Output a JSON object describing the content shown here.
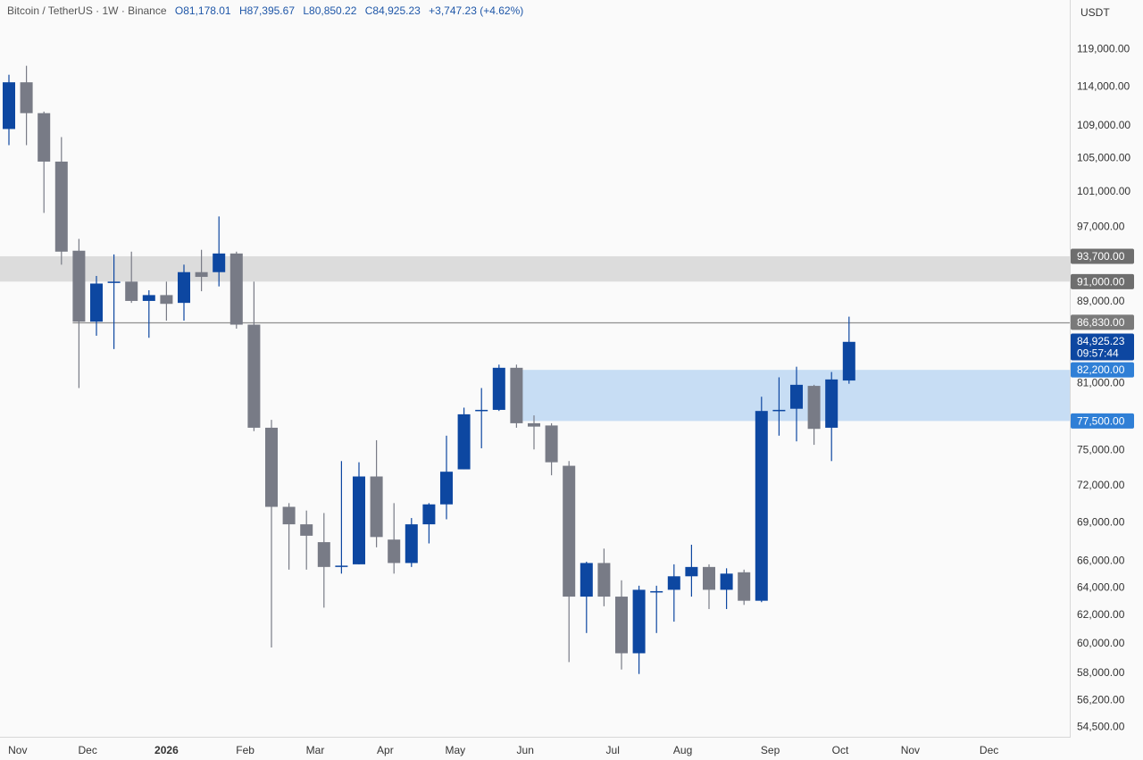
{
  "legend": {
    "symbol": "Bitcoin / TetherUS · 1W · Binance",
    "open": "O81,178.01",
    "high": "H87,395.67",
    "low": "L80,850.22",
    "close": "C84,925.23",
    "change": "+3,747.23 (+4.62%)"
  },
  "currency_label": "USDT",
  "colors": {
    "up": "#0d47a1",
    "down": "#787b86",
    "zone_supply": "#dcdcdc",
    "zone_demand": "#c7ddf4",
    "price_line": "#909090"
  },
  "chart_data": {
    "type": "candlestick",
    "title": "Bitcoin / TetherUS · 1W · Binance",
    "scale": "log",
    "ylim": [
      53500,
      124000
    ],
    "x_labels": [
      {
        "i": 0.5,
        "label": "Nov"
      },
      {
        "i": 4.5,
        "label": "Dec"
      },
      {
        "i": 9,
        "label": "2026",
        "bold": true
      },
      {
        "i": 13.5,
        "label": "Feb"
      },
      {
        "i": 17.5,
        "label": "Mar"
      },
      {
        "i": 21.5,
        "label": "Apr"
      },
      {
        "i": 25.5,
        "label": "May"
      },
      {
        "i": 29.5,
        "label": "Jun"
      },
      {
        "i": 34.5,
        "label": "Jul"
      },
      {
        "i": 38.5,
        "label": "Aug"
      },
      {
        "i": 43.5,
        "label": "Sep"
      },
      {
        "i": 47.5,
        "label": "Oct"
      },
      {
        "i": 51.5,
        "label": "Nov"
      },
      {
        "i": 56,
        "label": "Dec"
      }
    ],
    "y_ticks": [
      "119,000.00",
      "114,000.00",
      "109,000.00",
      "105,000.00",
      "101,000.00",
      "97,000.00",
      "89,000.00",
      "81,000.00",
      "75,000.00",
      "72,000.00",
      "69,000.00",
      "66,000.00",
      "64,000.00",
      "62,000.00",
      "60,000.00",
      "58,000.00",
      "56,200.00",
      "54,500.00"
    ],
    "zones": [
      {
        "name": "supply",
        "from": 91000,
        "to": 93700,
        "color": "#dcdcdc"
      },
      {
        "name": "demand",
        "from": 77500,
        "to": 82200,
        "color": "#c7ddf4"
      }
    ],
    "hline": 86830,
    "price_tags": [
      {
        "value": 93700,
        "text": "93,700.00",
        "bg": "#6e6e6e",
        "fg": "#ffffff"
      },
      {
        "value": 91000,
        "text": "91,000.00",
        "bg": "#6e6e6e",
        "fg": "#ffffff"
      },
      {
        "value": 86830,
        "text": "86,830.00",
        "bg": "#7a7a7a",
        "fg": "#ffffff"
      },
      {
        "value": 84925.23,
        "text": "84,925.23",
        "sub": "09:57:44",
        "bg": "#0d47a1",
        "fg": "#ffffff"
      },
      {
        "value": 82200,
        "text": "82,200.00",
        "bg": "#2f7fd6",
        "fg": "#ffffff"
      },
      {
        "value": 77500,
        "text": "77,500.00",
        "bg": "#2f7fd6",
        "fg": "#ffffff"
      }
    ],
    "candles": [
      {
        "o": 108500,
        "h": 115500,
        "l": 106500,
        "c": 114500
      },
      {
        "o": 114500,
        "h": 116700,
        "l": 106500,
        "c": 110500
      },
      {
        "o": 110500,
        "h": 110700,
        "l": 98500,
        "c": 104500
      },
      {
        "o": 104500,
        "h": 107500,
        "l": 92800,
        "c": 94200
      },
      {
        "o": 94300,
        "h": 95600,
        "l": 80500,
        "c": 86900
      },
      {
        "o": 86900,
        "h": 91600,
        "l": 85500,
        "c": 90800
      },
      {
        "o": 90900,
        "h": 93900,
        "l": 84200,
        "c": 91000
      },
      {
        "o": 91000,
        "h": 94200,
        "l": 88800,
        "c": 89000
      },
      {
        "o": 89000,
        "h": 90100,
        "l": 85300,
        "c": 89600
      },
      {
        "o": 89600,
        "h": 91000,
        "l": 87000,
        "c": 88700
      },
      {
        "o": 88800,
        "h": 92800,
        "l": 87000,
        "c": 92000
      },
      {
        "o": 92000,
        "h": 94400,
        "l": 90000,
        "c": 91500
      },
      {
        "o": 92000,
        "h": 98100,
        "l": 90500,
        "c": 94000
      },
      {
        "o": 94000,
        "h": 94200,
        "l": 86200,
        "c": 86600
      },
      {
        "o": 86600,
        "h": 91000,
        "l": 76600,
        "c": 76900
      },
      {
        "o": 76900,
        "h": 77600,
        "l": 59700,
        "c": 70200
      },
      {
        "o": 70200,
        "h": 70500,
        "l": 65300,
        "c": 68800
      },
      {
        "o": 68800,
        "h": 69900,
        "l": 65300,
        "c": 67900
      },
      {
        "o": 67400,
        "h": 69700,
        "l": 62500,
        "c": 65500
      },
      {
        "o": 65500,
        "h": 74000,
        "l": 65000,
        "c": 65600
      },
      {
        "o": 65700,
        "h": 73900,
        "l": 65700,
        "c": 72700
      },
      {
        "o": 72700,
        "h": 75800,
        "l": 67000,
        "c": 67800
      },
      {
        "o": 67600,
        "h": 70500,
        "l": 65000,
        "c": 65800
      },
      {
        "o": 65800,
        "h": 69300,
        "l": 65500,
        "c": 68800
      },
      {
        "o": 68800,
        "h": 70500,
        "l": 67300,
        "c": 70400
      },
      {
        "o": 70400,
        "h": 76200,
        "l": 69200,
        "c": 73100
      },
      {
        "o": 73300,
        "h": 78700,
        "l": 73300,
        "c": 78100
      },
      {
        "o": 78400,
        "h": 80500,
        "l": 75100,
        "c": 78500
      },
      {
        "o": 78500,
        "h": 82700,
        "l": 78400,
        "c": 82400
      },
      {
        "o": 82400,
        "h": 82700,
        "l": 76900,
        "c": 77300
      },
      {
        "o": 77300,
        "h": 78000,
        "l": 75000,
        "c": 77000
      },
      {
        "o": 77100,
        "h": 77300,
        "l": 72800,
        "c": 73900
      },
      {
        "o": 73600,
        "h": 74000,
        "l": 58700,
        "c": 63300
      },
      {
        "o": 63300,
        "h": 65900,
        "l": 60700,
        "c": 65800
      },
      {
        "o": 65800,
        "h": 66900,
        "l": 62600,
        "c": 63300
      },
      {
        "o": 63300,
        "h": 64500,
        "l": 58200,
        "c": 59300
      },
      {
        "o": 59300,
        "h": 64100,
        "l": 57900,
        "c": 63800
      },
      {
        "o": 63600,
        "h": 64100,
        "l": 60700,
        "c": 63700
      },
      {
        "o": 63800,
        "h": 65700,
        "l": 61500,
        "c": 64800
      },
      {
        "o": 64800,
        "h": 67200,
        "l": 63300,
        "c": 65500
      },
      {
        "o": 65500,
        "h": 65700,
        "l": 62400,
        "c": 63800
      },
      {
        "o": 63800,
        "h": 65400,
        "l": 62400,
        "c": 65000
      },
      {
        "o": 65100,
        "h": 65300,
        "l": 62700,
        "c": 63000
      },
      {
        "o": 63000,
        "h": 79700,
        "l": 62900,
        "c": 78400
      },
      {
        "o": 78400,
        "h": 81500,
        "l": 76200,
        "c": 78500
      },
      {
        "o": 78600,
        "h": 82500,
        "l": 75700,
        "c": 80800
      },
      {
        "o": 80700,
        "h": 80800,
        "l": 75400,
        "c": 76800
      },
      {
        "o": 76900,
        "h": 82000,
        "l": 74000,
        "c": 81300
      },
      {
        "o": 81200,
        "h": 87400,
        "l": 80900,
        "c": 84900
      }
    ]
  }
}
